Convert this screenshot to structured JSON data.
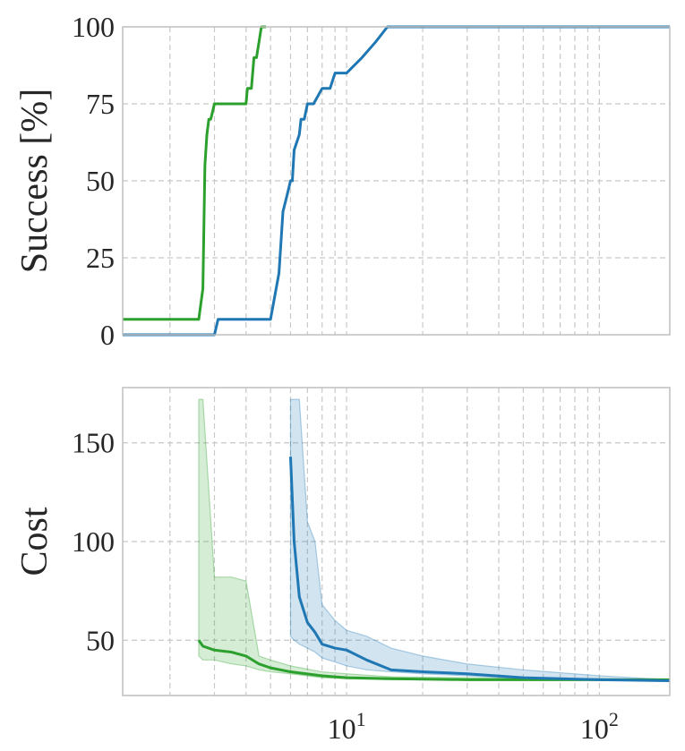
{
  "chart_data": [
    {
      "type": "line",
      "ylabel": "Success [%]",
      "xlabel": "",
      "xscale": "log",
      "xlim": [
        1.3,
        190
      ],
      "ylim": [
        0,
        100
      ],
      "yticks": [
        0,
        25,
        50,
        75,
        100
      ],
      "ytick_labels": [
        "0",
        "25",
        "50",
        "75",
        "100"
      ],
      "grid": true,
      "series": [
        {
          "color": "#2ca02c",
          "x": [
            1.3,
            2.6,
            2.7,
            2.75,
            2.8,
            2.85,
            2.9,
            3.0,
            3.05,
            4.0,
            4.05,
            4.2,
            4.3,
            4.4,
            4.5,
            4.6,
            4.8
          ],
          "y": [
            5,
            5,
            15,
            55,
            65,
            70,
            70,
            75,
            75,
            75,
            80,
            80,
            90,
            90,
            95,
            100,
            100
          ]
        },
        {
          "color": "#1f77b4",
          "x": [
            1.3,
            3.0,
            3.1,
            5.0,
            5.4,
            5.6,
            5.8,
            6.0,
            6.1,
            6.2,
            6.5,
            6.6,
            6.8,
            7.0,
            7.4,
            8.0,
            8.6,
            9.0,
            10.0,
            11.5,
            13.0,
            14.5,
            190
          ],
          "y": [
            0,
            0,
            5,
            5,
            20,
            40,
            45,
            50,
            50,
            60,
            65,
            70,
            70,
            75,
            75,
            80,
            80,
            85,
            85,
            90,
            95,
            100,
            100
          ]
        }
      ]
    },
    {
      "type": "line",
      "ylabel": "Cost",
      "xlabel": "",
      "xscale": "log",
      "xlim": [
        1.3,
        190
      ],
      "ylim": [
        22,
        178
      ],
      "yticks": [
        50,
        100,
        150
      ],
      "ytick_labels": [
        "50",
        "100",
        "150"
      ],
      "xticks": [
        10,
        100
      ],
      "xtick_labels": [
        {
          "base": "10",
          "exp": "1"
        },
        {
          "base": "10",
          "exp": "2"
        }
      ],
      "grid": true,
      "series": [
        {
          "color": "#2ca02c",
          "x": [
            2.6,
            2.7,
            3.0,
            3.5,
            4.0,
            4.5,
            5.0,
            6.0,
            8.0,
            10.0,
            15.0,
            30.0,
            60.0,
            100.0,
            190.0
          ],
          "y": [
            50,
            47,
            45,
            44,
            42,
            38,
            36,
            34,
            32,
            31,
            30.5,
            30,
            30,
            30,
            30
          ],
          "band_lower": [
            42,
            40,
            40,
            38,
            37,
            35,
            34,
            33,
            31,
            30.5,
            30,
            30,
            30,
            30,
            30
          ],
          "band_upper": [
            172,
            172,
            82,
            82,
            80,
            42,
            40,
            37,
            34,
            33,
            31.5,
            31,
            30.5,
            30.5,
            30
          ]
        },
        {
          "color": "#1f77b4",
          "x": [
            6.0,
            6.2,
            6.5,
            7.0,
            7.5,
            8.0,
            9.0,
            10.0,
            12.0,
            15.0,
            20.0,
            30.0,
            50.0,
            100.0,
            190.0
          ],
          "y": [
            143,
            100,
            72,
            59,
            54,
            48,
            46,
            45,
            40,
            35,
            34,
            33,
            31,
            30,
            29.5
          ],
          "band_lower": [
            52,
            50,
            48,
            46,
            44,
            41,
            39,
            37,
            35,
            34,
            33,
            32,
            30.5,
            30,
            29
          ],
          "band_upper": [
            172,
            172,
            172,
            110,
            100,
            68,
            60,
            55,
            52,
            46,
            42,
            38,
            35,
            32,
            30
          ]
        }
      ]
    }
  ]
}
